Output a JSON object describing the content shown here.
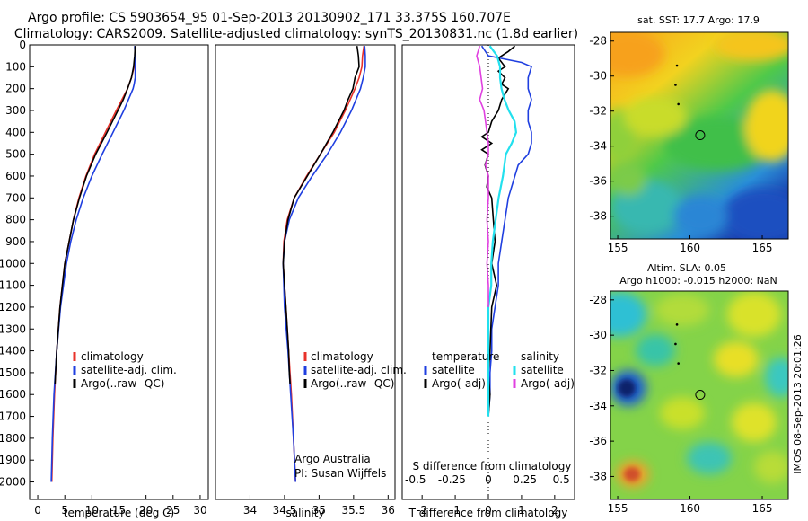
{
  "header": {
    "line1": "Argo profile: CS 5903654_95 01-Sep-2013 20130902_171 33.375S 160.707E",
    "line2": "Climatology: CARS2009. Satellite-adjusted climatology: synTS_20130831.nc (1.8d earlier)"
  },
  "watermark": "IMOS 08-Sep-2013 20:01:26",
  "colors": {
    "climatology": "#e8322a",
    "satellite": "#1f3fe0",
    "argo": "#000000",
    "sat_s": "#22e0ee",
    "argo_s": "#e040e0"
  },
  "chart_data": [
    {
      "type": "line",
      "panel": "temperature",
      "xlabel": "temperature (deg C)",
      "ylabel": "",
      "xlim": [
        -1.5,
        31.5
      ],
      "ylim": [
        2080,
        0
      ],
      "x_ticks": [
        0,
        5,
        10,
        15,
        20,
        25,
        30
      ],
      "x_tick_labels": [
        "0",
        "5",
        "10",
        "15",
        "20",
        "25",
        "30"
      ],
      "y_ticks": [
        0,
        100,
        200,
        300,
        400,
        500,
        600,
        700,
        800,
        900,
        1000,
        1100,
        1200,
        1300,
        1400,
        1500,
        1600,
        1700,
        1800,
        1900,
        2000
      ],
      "y_tick_labels": [
        "0",
        "100",
        "200",
        "300",
        "400",
        "500",
        "600",
        "700",
        "800",
        "900",
        "1000",
        "1100",
        "1200",
        "1300",
        "1400",
        "1500",
        "1600",
        "1700",
        "1800",
        "1900",
        "2000"
      ],
      "legend": [
        "climatology",
        "satellite-adj. clim.",
        "Argo(..raw -QC)"
      ],
      "series": [
        {
          "name": "climatology",
          "depth": [
            5,
            50,
            100,
            150,
            200,
            300,
            400,
            500,
            600,
            700,
            800,
            900,
            1000,
            1200,
            1400,
            1600,
            1800,
            2000
          ],
          "values": [
            18.1,
            18.0,
            17.8,
            17.3,
            16.6,
            14.5,
            12.5,
            10.5,
            8.9,
            7.6,
            6.6,
            5.8,
            5.0,
            4.1,
            3.5,
            3.1,
            2.8,
            2.6
          ]
        },
        {
          "name": "satellite-adj. clim.",
          "depth": [
            5,
            50,
            100,
            150,
            180,
            200,
            300,
            400,
            500,
            600,
            700,
            800,
            900,
            1000,
            1200,
            1400,
            1600,
            1800,
            2000
          ],
          "values": [
            17.9,
            18.0,
            18.0,
            18.0,
            17.8,
            17.6,
            15.9,
            13.9,
            11.9,
            10.0,
            8.4,
            7.1,
            6.1,
            5.3,
            4.2,
            3.5,
            3.0,
            2.7,
            2.5
          ]
        },
        {
          "name": "Argo(..raw -QC)",
          "depth": [
            5,
            50,
            100,
            150,
            200,
            250,
            300,
            400,
            500,
            600,
            700,
            800,
            900,
            1000,
            1200,
            1400,
            1500,
            1550
          ],
          "values": [
            18.0,
            17.9,
            17.7,
            17.3,
            16.6,
            15.8,
            14.8,
            12.8,
            10.7,
            9.0,
            7.7,
            6.6,
            5.8,
            5.0,
            4.1,
            3.5,
            3.3,
            3.2
          ]
        }
      ]
    },
    {
      "type": "line",
      "panel": "salinity",
      "xlabel": "salinity",
      "xlim": [
        33.5,
        36.1
      ],
      "ylim": [
        2080,
        0
      ],
      "x_ticks": [
        34,
        34.5,
        35,
        35.5,
        36
      ],
      "x_tick_labels": [
        "34",
        "34.5",
        "35",
        "35.5",
        "36"
      ],
      "legend": [
        "climatology",
        "satellite-adj. clim.",
        "Argo(..raw -QC)"
      ],
      "series": [
        {
          "name": "climatology",
          "depth": [
            5,
            50,
            100,
            150,
            200,
            300,
            400,
            500,
            600,
            700,
            800,
            900,
            1000,
            1200,
            1400,
            1600,
            1800,
            2000
          ],
          "values": [
            35.65,
            35.63,
            35.62,
            35.58,
            35.52,
            35.38,
            35.22,
            35.02,
            34.82,
            34.64,
            34.54,
            34.49,
            34.48,
            34.52,
            34.56,
            34.6,
            34.63,
            34.66
          ]
        },
        {
          "name": "satellite-adj. clim.",
          "depth": [
            5,
            50,
            100,
            150,
            200,
            300,
            400,
            500,
            600,
            700,
            800,
            900,
            1000,
            1200,
            1400,
            1600,
            1800,
            2000
          ],
          "values": [
            35.66,
            35.67,
            35.67,
            35.64,
            35.6,
            35.47,
            35.31,
            35.12,
            34.9,
            34.7,
            34.57,
            34.5,
            34.48,
            34.5,
            34.55,
            34.59,
            34.63,
            34.66
          ]
        },
        {
          "name": "Argo(..raw -QC)",
          "depth": [
            5,
            50,
            100,
            150,
            200,
            250,
            300,
            400,
            500,
            600,
            700,
            800,
            900,
            1000,
            1200,
            1400,
            1500,
            1550
          ],
          "values": [
            35.55,
            35.57,
            35.58,
            35.52,
            35.49,
            35.42,
            35.36,
            35.2,
            35.02,
            34.83,
            34.64,
            34.55,
            34.5,
            34.48,
            34.52,
            34.56,
            34.57,
            34.58
          ]
        }
      ],
      "annotations": [
        "Argo Australia",
        "PI: Susan Wijffels"
      ]
    },
    {
      "type": "line",
      "panel": "difference",
      "xlabel": "T difference from climatology",
      "x2label": "S difference from climatology",
      "xlim": [
        -2.6,
        2.6
      ],
      "ylim": [
        2080,
        0
      ],
      "x_ticks": [
        -2,
        -1,
        0,
        1,
        2
      ],
      "x_tick_labels": [
        "-2",
        "-1",
        "0",
        "1",
        "2"
      ],
      "x2_ticks": [
        -0.5,
        -0.25,
        0,
        0.25,
        0.5
      ],
      "x2_tick_labels": [
        "-0.5",
        "-0.25",
        "0",
        "0.25",
        "0.5"
      ],
      "legend_titles": [
        "temperature",
        "salinity"
      ],
      "legend": [
        "satellite",
        "Argo(-adj)",
        "satellite",
        "Argo(-adj)"
      ],
      "series": [
        {
          "name": "T satellite",
          "depth": [
            5,
            50,
            80,
            100,
            150,
            200,
            250,
            300,
            350,
            400,
            450,
            500,
            550,
            600,
            700,
            800,
            900,
            1000,
            1100,
            1200,
            1300,
            1400,
            1500,
            1600,
            1700
          ],
          "values": [
            -0.2,
            0.0,
            1.0,
            1.3,
            1.2,
            1.2,
            1.3,
            1.2,
            1.2,
            1.3,
            1.3,
            1.2,
            0.9,
            0.8,
            0.6,
            0.5,
            0.4,
            0.3,
            0.3,
            0.2,
            0.1,
            0.1,
            0.05,
            0.05,
            0.0
          ]
        },
        {
          "name": "T Argo(-adj)",
          "depth": [
            5,
            30,
            60,
            100,
            120,
            150,
            180,
            200,
            250,
            300,
            350,
            400,
            420,
            450,
            480,
            500,
            550,
            600,
            650,
            700,
            800,
            900,
            1000,
            1100,
            1200,
            1400,
            1500,
            1600,
            1700
          ],
          "values": [
            0.8,
            0.6,
            0.3,
            0.5,
            0.3,
            0.5,
            0.4,
            0.6,
            0.4,
            0.3,
            0.1,
            0.0,
            -0.2,
            0.1,
            -0.2,
            0.0,
            -0.1,
            0.0,
            -0.05,
            0.1,
            0.15,
            0.2,
            0.1,
            0.25,
            0.1,
            0.05,
            0.0,
            0.05,
            0.0
          ]
        },
        {
          "name": "S satellite",
          "depth": [
            5,
            50,
            100,
            150,
            200,
            250,
            300,
            350,
            400,
            450,
            500,
            600,
            700,
            800,
            900,
            1000,
            1100,
            1200,
            1400,
            1600,
            1700
          ],
          "values": [
            0.01,
            0.06,
            0.08,
            0.08,
            0.09,
            0.11,
            0.14,
            0.18,
            0.19,
            0.16,
            0.12,
            0.1,
            0.07,
            0.05,
            0.03,
            0.02,
            0.02,
            0.0,
            0.0,
            0.0,
            0.0
          ]
        },
        {
          "name": "S Argo(-adj)",
          "depth": [
            5,
            50,
            100,
            150,
            200,
            250,
            300,
            350,
            400,
            450,
            500,
            550,
            600,
            700,
            800,
            900,
            1000,
            1100,
            1200
          ],
          "values": [
            -0.06,
            -0.08,
            -0.06,
            -0.05,
            -0.04,
            -0.06,
            -0.03,
            -0.02,
            -0.01,
            0.0,
            0.0,
            -0.02,
            0.0,
            0.0,
            -0.01,
            0.0,
            -0.01,
            0.0,
            0.0
          ]
        }
      ]
    },
    {
      "type": "heatmap",
      "panel": "sst_map",
      "title": "sat. SST: 17.7 Argo: 17.9",
      "xlim": [
        154.5,
        166.8
      ],
      "ylim": [
        -39.3,
        -27.5
      ],
      "x_ticks": [
        155,
        160,
        165
      ],
      "x_tick_labels": [
        "155",
        "160",
        "165"
      ],
      "y_ticks": [
        -28,
        -30,
        -32,
        -34,
        -36,
        -38
      ],
      "y_tick_labels": [
        "-28",
        "-30",
        "-32",
        "-34",
        "-36",
        "-38"
      ],
      "marker": {
        "lon": 160.707,
        "lat": -33.375
      },
      "track": [
        {
          "lon": 159.1,
          "lat": -29.4
        },
        {
          "lon": 159.0,
          "lat": -30.5
        },
        {
          "lon": 159.2,
          "lat": -31.6
        }
      ]
    },
    {
      "type": "heatmap",
      "panel": "sla_map",
      "title": "Altim. SLA: 0.05",
      "subtitle": "Argo h1000: -0.015 h2000: NaN",
      "xlim": [
        154.5,
        166.8
      ],
      "ylim": [
        -39.3,
        -27.5
      ],
      "x_ticks": [
        155,
        160,
        165
      ],
      "x_tick_labels": [
        "155",
        "160",
        "165"
      ],
      "y_ticks": [
        -28,
        -30,
        -32,
        -34,
        -36,
        -38
      ],
      "y_tick_labels": [
        "-28",
        "-30",
        "-32",
        "-34",
        "-36",
        "-38"
      ],
      "marker": {
        "lon": 160.707,
        "lat": -33.375
      },
      "track": [
        {
          "lon": 159.1,
          "lat": -29.4
        },
        {
          "lon": 159.0,
          "lat": -30.5
        },
        {
          "lon": 159.2,
          "lat": -31.6
        }
      ]
    }
  ]
}
